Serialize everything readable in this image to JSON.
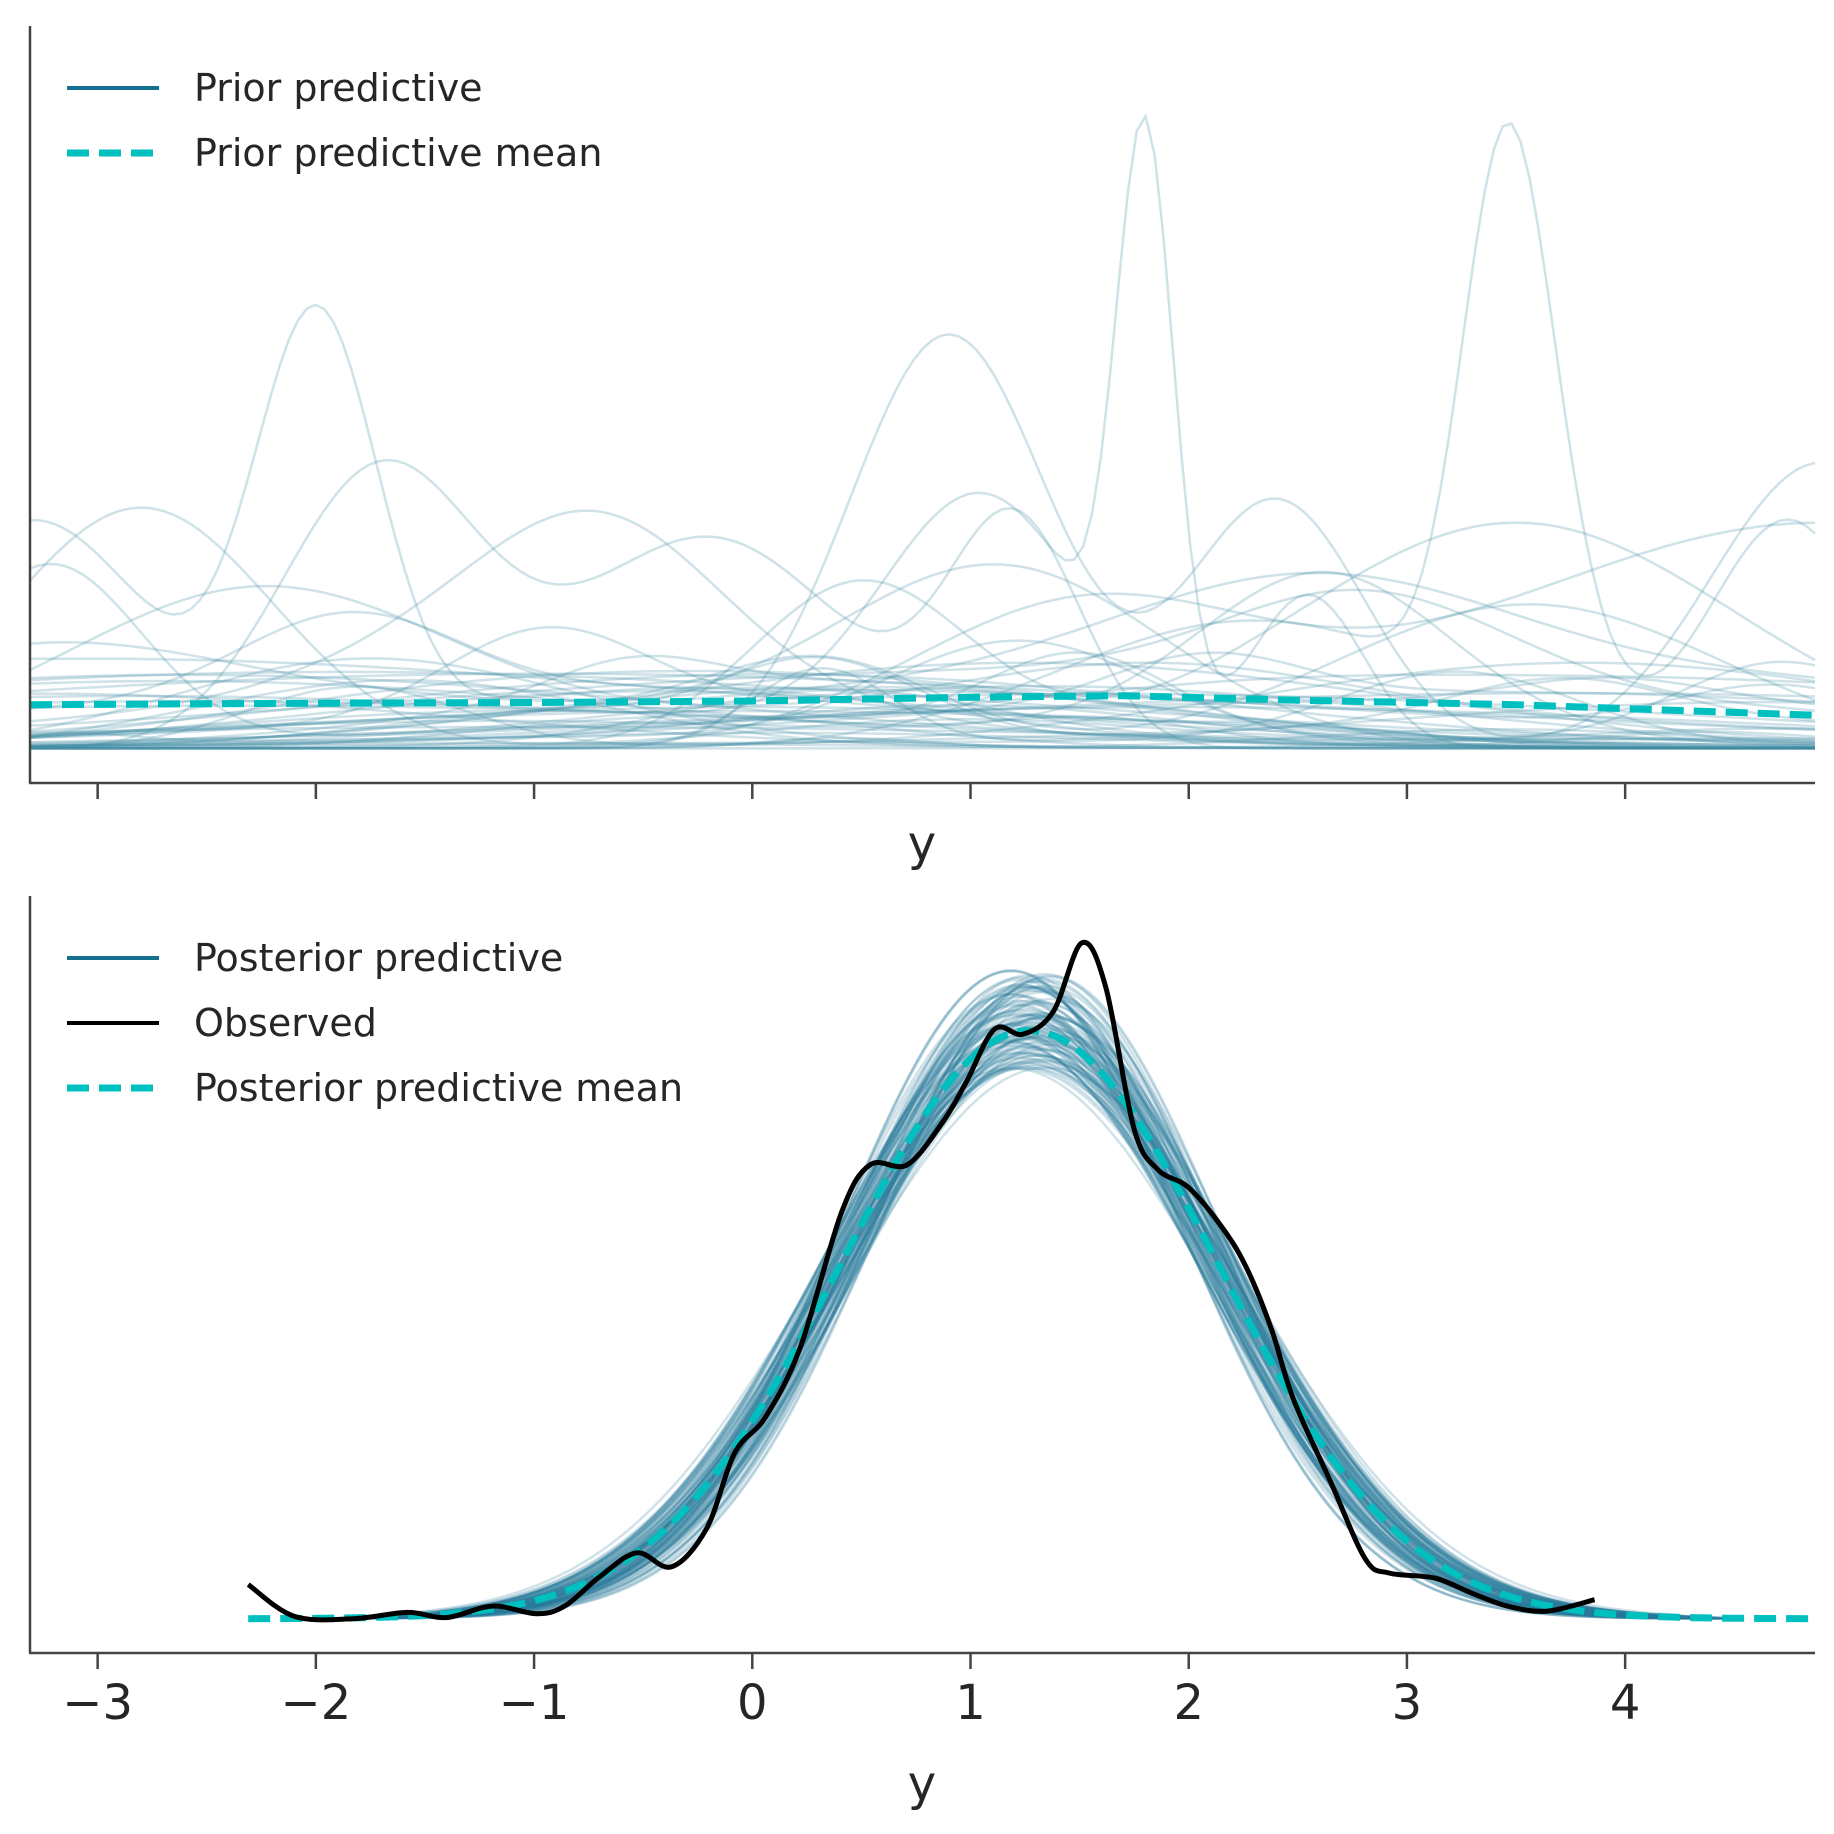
{
  "chart_data": [
    {
      "type": "line",
      "panel": "top",
      "xlabel": "y",
      "ylabel": "",
      "xlim": [
        -3.31,
        4.87
      ],
      "ylim": [
        -0.046,
        0.96
      ],
      "xticks": [
        -3,
        -2,
        -1,
        0,
        1,
        2,
        3,
        4
      ],
      "show_tick_labels": false,
      "legend": {
        "placement": "top-left",
        "entries": [
          {
            "label": "Prior predictive",
            "style": "solid",
            "color": "#16708f"
          },
          {
            "label": "Prior predictive mean",
            "style": "dashed",
            "color": "#00bfbf"
          }
        ]
      },
      "sample_color": "#3f8ba3",
      "sample_opacity": 0.25,
      "prior_samples_components": [
        [
          [
            1.8,
            0.13,
            0.75
          ],
          [
            1.05,
            0.45,
            0.32
          ],
          [
            2.55,
            0.25,
            0.2
          ],
          [
            -1.0,
            1.5,
            0.05
          ]
        ],
        [
          [
            3.45,
            0.2,
            0.7
          ],
          [
            2.3,
            0.9,
            0.17
          ],
          [
            4.75,
            0.35,
            0.3
          ],
          [
            3.7,
            0.2,
            0.12
          ]
        ],
        [
          [
            -2.0,
            0.28,
            0.55
          ],
          [
            -3.3,
            0.5,
            0.3
          ],
          [
            -0.3,
            1.2,
            0.08
          ]
        ],
        [
          [
            0.9,
            0.45,
            0.55
          ],
          [
            2.4,
            0.4,
            0.33
          ],
          [
            4.9,
            0.5,
            0.38
          ]
        ],
        [
          [
            -1.7,
            0.45,
            0.37
          ],
          [
            -0.2,
            0.6,
            0.28
          ],
          [
            1.2,
            0.3,
            0.3
          ]
        ],
        [
          [
            3.5,
            1.0,
            0.3
          ],
          [
            -2.8,
            0.6,
            0.32
          ],
          [
            0.5,
            0.5,
            0.22
          ]
        ],
        [
          [
            4.9,
            1.5,
            0.3
          ],
          [
            1.5,
            0.8,
            0.18
          ]
        ]
      ],
      "random_samples": {
        "count": 48,
        "seed": 7
      },
      "prior_mean": {
        "x": [
          -3.31,
          -2,
          -1,
          0,
          1,
          1.7,
          2.5,
          3.5,
          4.87
        ],
        "y": [
          0.058,
          0.06,
          0.061,
          0.063,
          0.068,
          0.07,
          0.064,
          0.058,
          0.044
        ]
      }
    },
    {
      "type": "line",
      "panel": "bottom",
      "xlabel": "y",
      "ylabel": "",
      "xlim": [
        -3.31,
        4.87
      ],
      "ylim": [
        -0.027,
        0.57
      ],
      "xticks": [
        -3,
        -2,
        -1,
        0,
        1,
        2,
        3,
        4
      ],
      "xtick_labels": [
        "−3",
        "−2",
        "−1",
        "0",
        "1",
        "2",
        "3",
        "4"
      ],
      "legend": {
        "placement": "top-left",
        "entries": [
          {
            "label": "Posterior predictive",
            "style": "solid",
            "color": "#16708f"
          },
          {
            "label": "Observed",
            "style": "solid",
            "color": "#000000"
          },
          {
            "label": "Posterior predictive mean",
            "style": "dashed",
            "color": "#00bfbf"
          }
        ]
      },
      "posterior_samples": {
        "count": 100,
        "seed": 11,
        "mu": 1.27,
        "sigma": 0.85,
        "mu_spread": 0.1,
        "sigma_spread": 0.07,
        "x_range": [
          -1.9,
          4.5
        ]
      },
      "posterior_mean": {
        "mu": 1.27,
        "sigma": 0.86,
        "x_range": [
          -2.31,
          4.87
        ]
      },
      "observed": {
        "x": [
          -2.31,
          -2.1,
          -1.83,
          -1.58,
          -1.4,
          -1.19,
          -0.99,
          -0.86,
          -0.7,
          -0.53,
          -0.37,
          -0.21,
          -0.08,
          0.06,
          0.22,
          0.41,
          0.54,
          0.71,
          0.87,
          0.98,
          1.11,
          1.24,
          1.38,
          1.51,
          1.62,
          1.75,
          1.86,
          2.0,
          2.16,
          2.27,
          2.38,
          2.48,
          2.65,
          2.81,
          2.92,
          3.13,
          3.3,
          3.46,
          3.64,
          3.86
        ],
        "y": [
          0.027,
          0.002,
          0.0,
          0.005,
          0.001,
          0.01,
          0.004,
          0.01,
          0.033,
          0.052,
          0.041,
          0.071,
          0.131,
          0.159,
          0.214,
          0.321,
          0.358,
          0.358,
          0.391,
          0.423,
          0.465,
          0.461,
          0.479,
          0.533,
          0.498,
          0.386,
          0.354,
          0.34,
          0.307,
          0.275,
          0.228,
          0.173,
          0.108,
          0.047,
          0.036,
          0.032,
          0.02,
          0.01,
          0.006,
          0.015
        ]
      }
    }
  ]
}
